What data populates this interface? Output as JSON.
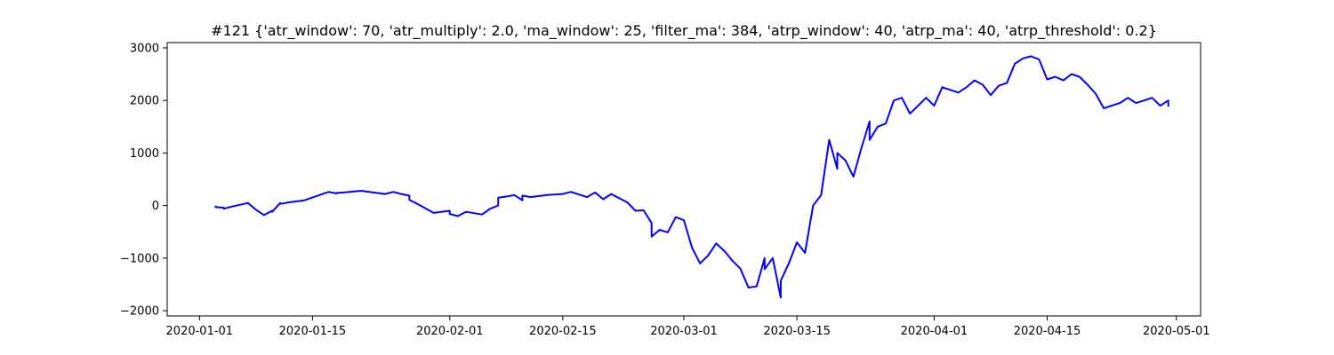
{
  "chart_data": {
    "type": "line",
    "title": "#121 {'atr_window': 70, 'atr_multiply': 2.0, 'ma_window': 25, 'filter_ma': 384, 'atrp_window': 40, 'atrp_ma': 40, 'atrp_threshold': 0.2}",
    "xlabel": "",
    "ylabel": "",
    "x_axis": "date",
    "xlim": [
      "2019-12-28",
      "2020-05-04"
    ],
    "ylim": [
      -2100,
      3100
    ],
    "grid": false,
    "x_ticks": [
      "2020-01-01",
      "2020-01-15",
      "2020-02-01",
      "2020-02-15",
      "2020-03-01",
      "2020-03-15",
      "2020-04-01",
      "2020-04-15",
      "2020-05-01"
    ],
    "y_ticks": [
      -2000,
      -1000,
      0,
      1000,
      2000,
      3000
    ],
    "series": [
      {
        "color": "#0000ff",
        "x": [
          "2020-01-03",
          "2020-01-03",
          "2020-01-04",
          "2020-01-04",
          "2020-01-05",
          "2020-01-07",
          "2020-01-08",
          "2020-01-09",
          "2020-01-10",
          "2020-01-10",
          "2020-01-11",
          "2020-01-11",
          "2020-01-12",
          "2020-01-13",
          "2020-01-14",
          "2020-01-17",
          "2020-01-18",
          "2020-01-18",
          "2020-01-19",
          "2020-01-20",
          "2020-01-21",
          "2020-01-24",
          "2020-01-25",
          "2020-01-26",
          "2020-01-27",
          "2020-01-27",
          "2020-01-28",
          "2020-01-30",
          "2020-02-01",
          "2020-02-01",
          "2020-02-02",
          "2020-02-03",
          "2020-02-05",
          "2020-02-06",
          "2020-02-07",
          "2020-02-07",
          "2020-02-08",
          "2020-02-09",
          "2020-02-10",
          "2020-02-10",
          "2020-02-11",
          "2020-02-13",
          "2020-02-15",
          "2020-02-16",
          "2020-02-18",
          "2020-02-19",
          "2020-02-20",
          "2020-02-21",
          "2020-02-23",
          "2020-02-24",
          "2020-02-25",
          "2020-02-26",
          "2020-02-26",
          "2020-02-27",
          "2020-02-28",
          "2020-02-29",
          "2020-03-01",
          "2020-03-02",
          "2020-03-03",
          "2020-03-04",
          "2020-03-05",
          "2020-03-06",
          "2020-03-07",
          "2020-03-08",
          "2020-03-09",
          "2020-03-10",
          "2020-03-11",
          "2020-03-11",
          "2020-03-12",
          "2020-03-13",
          "2020-03-13",
          "2020-03-14",
          "2020-03-15",
          "2020-03-16",
          "2020-03-17",
          "2020-03-18",
          "2020-03-19",
          "2020-03-20",
          "2020-03-20",
          "2020-03-21",
          "2020-03-22",
          "2020-03-23",
          "2020-03-24",
          "2020-03-24",
          "2020-03-25",
          "2020-03-26",
          "2020-03-27",
          "2020-03-28",
          "2020-03-29",
          "2020-03-30",
          "2020-03-31",
          "2020-04-01",
          "2020-04-02",
          "2020-04-03",
          "2020-04-04",
          "2020-04-05",
          "2020-04-06",
          "2020-04-07",
          "2020-04-08",
          "2020-04-09",
          "2020-04-10",
          "2020-04-11",
          "2020-04-12",
          "2020-04-13",
          "2020-04-14",
          "2020-04-15",
          "2020-04-16",
          "2020-04-17",
          "2020-04-18",
          "2020-04-19",
          "2020-04-20",
          "2020-04-21",
          "2020-04-22",
          "2020-04-23",
          "2020-04-24",
          "2020-04-25",
          "2020-04-26",
          "2020-04-27",
          "2020-04-28",
          "2020-04-29",
          "2020-04-30",
          "2020-04-30"
        ],
        "y": [
          0,
          -30,
          -40,
          -60,
          -20,
          50,
          -80,
          -180,
          -100,
          -120,
          50,
          30,
          60,
          80,
          100,
          260,
          230,
          240,
          250,
          265,
          280,
          220,
          260,
          220,
          190,
          110,
          30,
          -140,
          -100,
          -160,
          -200,
          -120,
          -170,
          -60,
          0,
          150,
          170,
          200,
          100,
          190,
          160,
          200,
          220,
          260,
          160,
          250,
          120,
          220,
          60,
          -100,
          -90,
          -330,
          -590,
          -460,
          -510,
          -220,
          -280,
          -800,
          -1100,
          -950,
          -720,
          -860,
          -1050,
          -1200,
          -1560,
          -1540,
          -1000,
          -1210,
          -1000,
          -1750,
          -1430,
          -1100,
          -700,
          -900,
          0,
          200,
          1250,
          700,
          1000,
          860,
          550,
          1100,
          1600,
          1250,
          1500,
          1560,
          2000,
          2050,
          1750,
          1900,
          2050,
          1900,
          2250,
          2200,
          2150,
          2250,
          2380,
          2300,
          2100,
          2280,
          2330,
          2700,
          2800,
          2840,
          2780,
          2400,
          2450,
          2380,
          2500,
          2450,
          2300,
          2130,
          1850,
          1900,
          1950,
          2050,
          1950,
          2000,
          2050,
          1900,
          2000,
          1880
        ]
      }
    ]
  }
}
